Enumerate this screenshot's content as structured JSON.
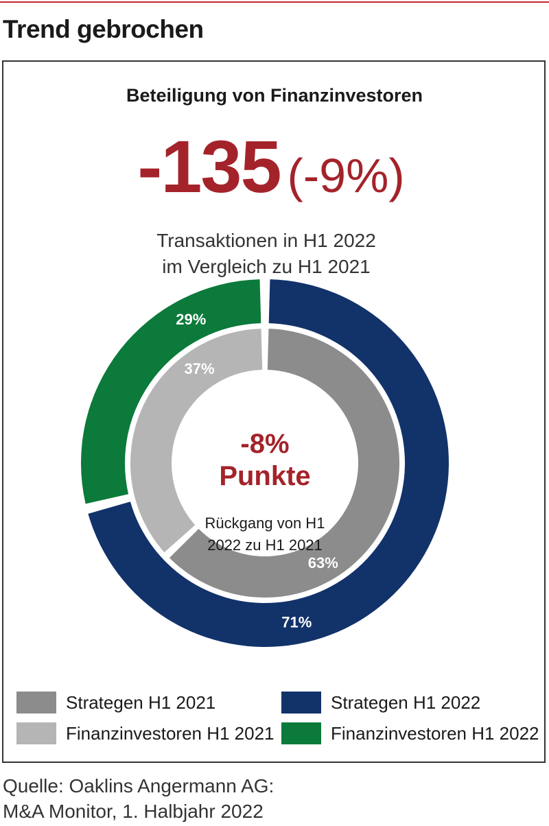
{
  "headline": "Trend gebrochen",
  "chart_data": {
    "type": "pie",
    "subtitle": "Beteiligung von Finanzinvestoren",
    "kpi": {
      "value": "-135",
      "percent": "(-9%)",
      "description_line1": "Transaktionen in H1 2022",
      "description_line2": "im Vergleich zu H1 2021"
    },
    "center": {
      "value": "-8%",
      "unit": "Punkte",
      "note_line1": "Rückgang von H1",
      "note_line2": "2022 zu H1 2021"
    },
    "rings": [
      {
        "name": "H1 2022",
        "position": "outer",
        "slices": [
          {
            "label": "Strategen H1 2022",
            "value": 71,
            "display": "71%",
            "color": "#12326a"
          },
          {
            "label": "Finanzinvestoren H1 2022",
            "value": 29,
            "display": "29%",
            "color": "#0b7a3a"
          }
        ]
      },
      {
        "name": "H1 2021",
        "position": "inner",
        "slices": [
          {
            "label": "Strategen H1 2021",
            "value": 63,
            "display": "63%",
            "color": "#8c8c8c"
          },
          {
            "label": "Finanzinvestoren H1 2021",
            "value": 37,
            "display": "37%",
            "color": "#b5b5b5"
          }
        ]
      }
    ],
    "legend": [
      {
        "label": "Strategen H1 2021",
        "color": "#8c8c8c"
      },
      {
        "label": "Strategen H1 2022",
        "color": "#12326a"
      },
      {
        "label": "Finanzinvestoren H1 2021",
        "color": "#b5b5b5"
      },
      {
        "label": "Finanzinvestoren H1 2022",
        "color": "#0b7a3a"
      }
    ]
  },
  "source_line1": "Quelle: Oaklins Angermann AG:",
  "source_line2": "M&A Monitor, 1. Halbjahr 2022",
  "colors": {
    "accent_red": "#a4232a",
    "rule_red": "#c4262e"
  }
}
